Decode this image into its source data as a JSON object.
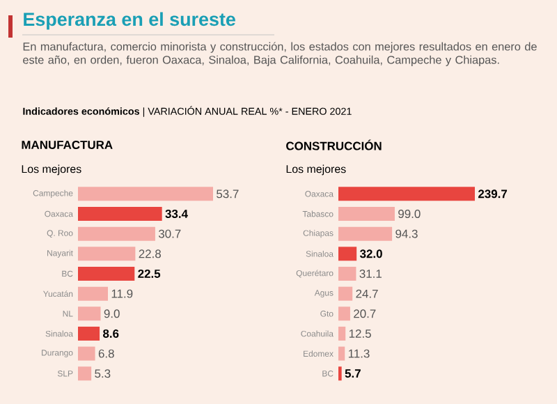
{
  "chart_data": [
    {
      "type": "bar",
      "orientation": "horizontal",
      "title": "MANUFACTURA",
      "subtitle": "Los mejores",
      "annotations": [
        "Esperanza en el sureste",
        "En manufactura, comercio minorista y construcción, los estados con mejores resultados en enero de este año, en orden, fueron Oaxaca, Sinaloa, Baja California, Coahuila, Campeche y Chiapas.",
        "**Indicadores económicos** | VARIACIÓN ANUAL REAL %* - ENERO 2021"
      ],
      "categories": [
        "Campeche",
        "Oaxaca",
        "Q. Roo",
        "Nayarit",
        "BC",
        "Yucatán",
        "NL",
        "Sinaloa",
        "Durango",
        "SLP"
      ],
      "values": [
        53.7,
        33.4,
        30.7,
        22.8,
        22.5,
        11.9,
        9.0,
        8.6,
        6.8,
        5.3
      ],
      "colors": [
        "#f4aba6",
        "#e8453f",
        "#f4aba6",
        "#f4aba6",
        "#e8453f",
        "#f4aba6",
        "#f4aba6",
        "#e8453f",
        "#f4aba6",
        "#f4aba6"
      ],
      "value_labels": [
        "53.7",
        "33.4",
        "30.7",
        "22.8",
        "22.5",
        "11.9",
        "9.0",
        "8.6",
        "6.8",
        "5.3"
      ],
      "xlim": [
        0,
        53.7
      ],
      "tick_labels": "y"
    },
    {
      "type": "bar",
      "orientation": "horizontal",
      "title": "CONSTRUCCIÓN",
      "subtitle": "Los mejores",
      "categories": [
        "Oaxaca",
        "Tabasco",
        "Chiapas",
        "Sinaloa",
        "Querétaro",
        "Agus",
        "Gto",
        "Coahuila",
        "Edomex",
        "BC"
      ],
      "values": [
        239.7,
        99.0,
        94.3,
        32.0,
        31.1,
        24.7,
        20.7,
        12.5,
        11.3,
        5.7
      ],
      "colors": [
        "#e8453f",
        "#f4aba6",
        "#f4aba6",
        "#e8453f",
        "#f4aba6",
        "#f4aba6",
        "#f4aba6",
        "#f4aba6",
        "#f4aba6",
        "#e8453f"
      ],
      "value_labels": [
        "239.7",
        "99.0",
        "94.3",
        "32.0",
        "31.1",
        "24.7",
        "20.7",
        "12.5",
        "11.3",
        "5.7"
      ],
      "xlim": [
        0,
        239.7
      ],
      "tick_labels": "y"
    }
  ]
}
